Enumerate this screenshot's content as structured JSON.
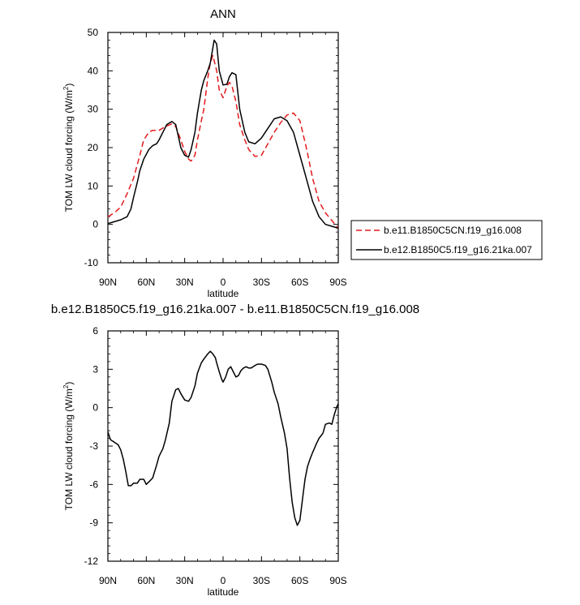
{
  "chart_data": [
    {
      "type": "line",
      "title": "ANN",
      "xlabel": "latitude",
      "ylabel": "TOM LW cloud forcing (W/m",
      "ylabel_sup": "2",
      "ylabel_tail": ")",
      "xlim": [
        90,
        -90
      ],
      "ylim": [
        -10,
        50
      ],
      "yticks": [
        -10,
        0,
        10,
        20,
        30,
        40,
        50
      ],
      "xticks": [
        {
          "value": 90,
          "label": "90N"
        },
        {
          "value": 60,
          "label": "60N"
        },
        {
          "value": 30,
          "label": "30N"
        },
        {
          "value": 0,
          "label": "0"
        },
        {
          "value": -30,
          "label": "30S"
        },
        {
          "value": -60,
          "label": "60S"
        },
        {
          "value": -90,
          "label": "90S"
        }
      ],
      "grid": false,
      "legend_position": "right",
      "series": [
        {
          "name": "b.e11.B1850C5CN.f19_g16.008",
          "color": "#e41a1c",
          "dash": "dashed",
          "x": [
            90,
            85,
            80,
            75,
            70,
            65,
            62,
            58,
            55,
            50,
            45,
            40,
            37,
            33,
            30,
            27,
            25,
            22,
            20,
            17,
            15,
            12,
            10,
            8,
            5,
            3,
            0,
            -3,
            -5,
            -7,
            -10,
            -13,
            -17,
            -20,
            -25,
            -30,
            -35,
            -40,
            -45,
            -50,
            -55,
            -60,
            -65,
            -70,
            -75,
            -80,
            -85,
            -90
          ],
          "y": [
            2,
            3,
            4.5,
            8,
            12,
            18,
            22,
            24,
            24.5,
            24.5,
            25.5,
            26.2,
            25.5,
            22,
            19,
            17,
            16.5,
            18,
            22,
            27,
            30,
            38,
            42,
            44,
            40,
            35,
            33,
            36,
            37,
            36,
            32,
            26,
            22,
            19.5,
            17.7,
            18,
            21,
            24,
            26.5,
            28.5,
            29,
            27,
            20,
            12,
            6,
            3,
            1,
            -1
          ]
        },
        {
          "name": "b.e12.B1850C5.f19_g16.21ka.007",
          "color": "#000000",
          "dash": "solid",
          "x": [
            90,
            85,
            80,
            75,
            72,
            70,
            67,
            65,
            62,
            58,
            55,
            52,
            50,
            47,
            44,
            40,
            37,
            35,
            33,
            30,
            27,
            25,
            22,
            20,
            17,
            15,
            12,
            10,
            8,
            7,
            5,
            3,
            0,
            -3,
            -5,
            -7,
            -10,
            -13,
            -17,
            -20,
            -25,
            -30,
            -35,
            -40,
            -45,
            -50,
            -55,
            -60,
            -65,
            -70,
            -75,
            -80,
            -85,
            -90
          ],
          "y": [
            0.2,
            0.7,
            1.2,
            2,
            4,
            7,
            11,
            14,
            17,
            19.5,
            20.5,
            21,
            22,
            24,
            26,
            26.8,
            26,
            23,
            20,
            18,
            17.5,
            19.5,
            24,
            29,
            35,
            37.5,
            40,
            42,
            46,
            48,
            47,
            40,
            36.3,
            36.5,
            38.5,
            39.5,
            39,
            30,
            24,
            21.5,
            21,
            22.5,
            25,
            27.5,
            28,
            27,
            24,
            18,
            12,
            6,
            2,
            0,
            -0.5,
            -1
          ]
        }
      ]
    },
    {
      "type": "line",
      "title": "b.e12.B1850C5.f19_g16.21ka.007 - b.e11.B1850C5CN.f19_g16.008",
      "xlabel": "latitude",
      "ylabel": "TOM LW cloud forcing (W/m",
      "ylabel_sup": "2",
      "ylabel_tail": ")",
      "xlim": [
        90,
        -90
      ],
      "ylim": [
        -12,
        6
      ],
      "yticks": [
        -12,
        -9,
        -6,
        -3,
        0,
        3,
        6
      ],
      "xticks": [
        {
          "value": 90,
          "label": "90N"
        },
        {
          "value": 60,
          "label": "60N"
        },
        {
          "value": 30,
          "label": "30N"
        },
        {
          "value": 0,
          "label": "0"
        },
        {
          "value": -30,
          "label": "30S"
        },
        {
          "value": -60,
          "label": "60S"
        },
        {
          "value": -90,
          "label": "90S"
        }
      ],
      "grid": false,
      "series": [
        {
          "color": "#000000",
          "dash": "solid",
          "x": [
            90,
            88,
            85,
            82,
            80,
            78,
            76,
            74,
            72,
            70,
            67,
            65,
            62,
            60,
            58,
            55,
            52,
            50,
            47,
            45,
            42,
            40,
            37,
            35,
            33,
            30,
            27,
            25,
            22,
            20,
            17,
            15,
            12,
            10,
            8,
            6,
            5,
            3,
            1,
            0,
            -2,
            -4,
            -6,
            -8,
            -10,
            -12,
            -14,
            -16,
            -18,
            -20,
            -22,
            -25,
            -27,
            -30,
            -33,
            -35,
            -38,
            -40,
            -43,
            -45,
            -48,
            -50,
            -52,
            -54,
            -56,
            -58,
            -60,
            -62,
            -64,
            -66,
            -68,
            -70,
            -73,
            -75,
            -78,
            -80,
            -83,
            -85,
            -87,
            -89,
            -90
          ],
          "y": [
            -1.9,
            -2.5,
            -2.7,
            -2.9,
            -3.3,
            -4,
            -5,
            -6.1,
            -6.1,
            -5.9,
            -5.9,
            -5.6,
            -5.6,
            -6,
            -5.8,
            -5.5,
            -4.5,
            -3.8,
            -3.2,
            -2.5,
            -1.2,
            0.5,
            1.4,
            1.5,
            1.1,
            0.6,
            0.5,
            0.8,
            1.7,
            2.7,
            3.5,
            3.8,
            4.2,
            4.4,
            4.2,
            3.9,
            3.5,
            2.8,
            2.2,
            2,
            2.4,
            3.0,
            3.2,
            2.8,
            2.4,
            2.5,
            2.9,
            3.1,
            3.2,
            3.1,
            3.1,
            3.3,
            3.4,
            3.4,
            3.3,
            3,
            2.0,
            1.2,
            0.3,
            -0.7,
            -2.0,
            -3.2,
            -5.5,
            -7.4,
            -8.6,
            -9.2,
            -8.8,
            -7.2,
            -5.6,
            -4.6,
            -4.0,
            -3.5,
            -2.8,
            -2.4,
            -2.0,
            -1.3,
            -1.2,
            -1.3,
            -0.5,
            0.1,
            0.3
          ]
        }
      ]
    }
  ]
}
